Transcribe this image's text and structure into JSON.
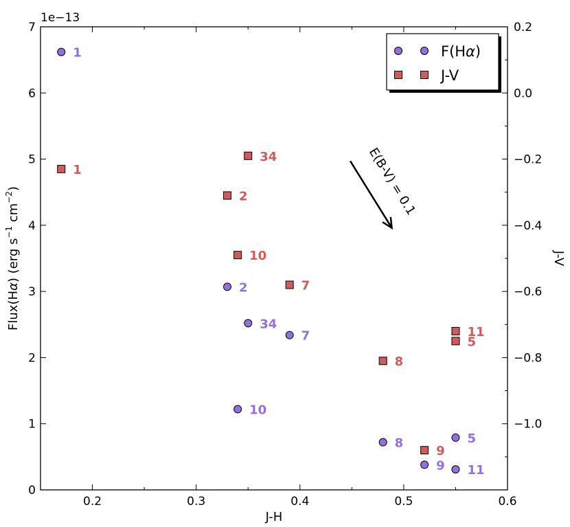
{
  "chart_data": {
    "type": "scatter",
    "xlabel": "J-H",
    "ylabel_parts": [
      "Flux(H",
      "α",
      ") (erg s",
      "−1",
      " cm",
      "−2",
      ")"
    ],
    "y2label": "J-V",
    "offset_text": "1e−13",
    "xlim": [
      0.15,
      0.6
    ],
    "ylim": [
      0,
      7
    ],
    "y2lim": [
      -1.2,
      0.2
    ],
    "x_ticks": [
      "0.2",
      "0.3",
      "0.4",
      "0.5",
      "0.6"
    ],
    "x_tick_values": [
      0.2,
      0.3,
      0.4,
      0.5,
      0.6
    ],
    "y_ticks": [
      "0",
      "1",
      "2",
      "3",
      "4",
      "5",
      "6",
      "7"
    ],
    "y_tick_values": [
      0,
      1,
      2,
      3,
      4,
      5,
      6,
      7
    ],
    "y2_ticks": [
      "−1.0",
      "−0.8",
      "−0.6",
      "−0.4",
      "−0.2",
      "0.0",
      "0.2"
    ],
    "y2_tick_values": [
      -1.0,
      -0.8,
      -0.6,
      -0.4,
      -0.2,
      0.0,
      0.2
    ],
    "legend_position": "top-right",
    "series": [
      {
        "name_parts": [
          "F(H",
          "α",
          ")"
        ],
        "marker": "circle",
        "color": "#9370DB",
        "label_color": "#9370DB",
        "axis": "left",
        "points": [
          {
            "label": "1",
            "x": 0.17,
            "y": 6.62
          },
          {
            "label": "2",
            "x": 0.33,
            "y": 3.07
          },
          {
            "label": "34",
            "x": 0.35,
            "y": 2.52
          },
          {
            "label": "7",
            "x": 0.39,
            "y": 2.34
          },
          {
            "label": "10",
            "x": 0.34,
            "y": 1.22
          },
          {
            "label": "8",
            "x": 0.48,
            "y": 0.72
          },
          {
            "label": "9",
            "x": 0.52,
            "y": 0.38
          },
          {
            "label": "5",
            "x": 0.55,
            "y": 0.79
          },
          {
            "label": "11",
            "x": 0.55,
            "y": 0.31
          }
        ]
      },
      {
        "name": "J-V",
        "marker": "square",
        "color": "#CD5C5C",
        "label_color": "#CD5C5C",
        "axis": "right",
        "points": [
          {
            "label": "1",
            "x": 0.17,
            "y": -0.23
          },
          {
            "label": "34",
            "x": 0.35,
            "y": -0.19
          },
          {
            "label": "2",
            "x": 0.33,
            "y": -0.31
          },
          {
            "label": "10",
            "x": 0.34,
            "y": -0.49
          },
          {
            "label": "7",
            "x": 0.39,
            "y": -0.58
          },
          {
            "label": "8",
            "x": 0.48,
            "y": -0.81
          },
          {
            "label": "11",
            "x": 0.55,
            "y": -0.72
          },
          {
            "label": "5",
            "x": 0.55,
            "y": -0.75
          },
          {
            "label": "9",
            "x": 0.52,
            "y": -1.08
          }
        ]
      }
    ],
    "annotation": {
      "text": "E(B-V) = 0.1",
      "x_start": 0.4485,
      "y_start": 4.97,
      "x_end": 0.4885,
      "y_end": 3.96
    }
  }
}
